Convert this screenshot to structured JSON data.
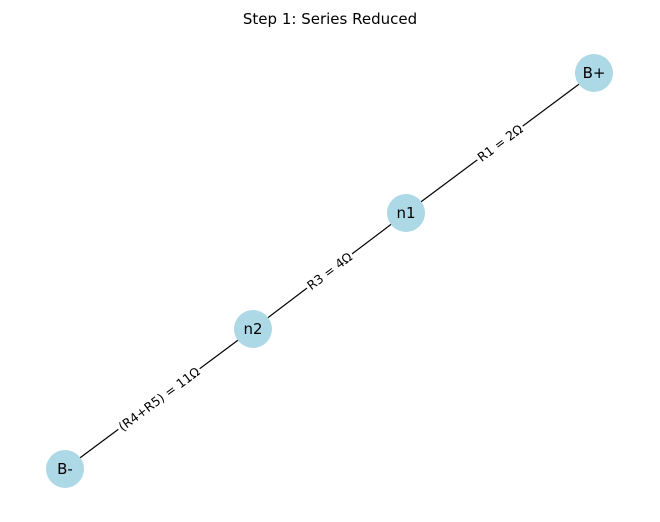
{
  "title": "Step 1: Series Reduced",
  "colors": {
    "node_fill": "#add8e6",
    "edge_stroke": "#000000",
    "label_background": "#ffffff",
    "text": "#000000"
  },
  "nodes": [
    {
      "id": "B+",
      "label": "B+"
    },
    {
      "id": "n1",
      "label": "n1"
    },
    {
      "id": "n2",
      "label": "n2"
    },
    {
      "id": "B-",
      "label": "B-"
    }
  ],
  "edges": [
    {
      "from": "B+",
      "to": "n1",
      "label": "R1 = 2Ω"
    },
    {
      "from": "n1",
      "to": "n2",
      "label": "R3 = 4Ω"
    },
    {
      "from": "n2",
      "to": "B-",
      "label": "(R4+R5) = 11Ω"
    }
  ]
}
